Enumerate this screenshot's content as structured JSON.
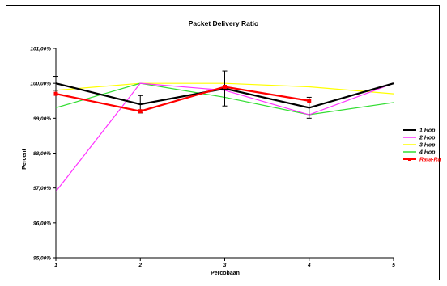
{
  "chart_data": {
    "type": "line",
    "title": "Packet Delivery Ratio",
    "xlabel": "Percobaan",
    "ylabel": "Percent",
    "x": [
      1,
      2,
      3,
      4,
      5
    ],
    "x_tick_labels": [
      "1",
      "2",
      "3",
      "4",
      "5"
    ],
    "ylim": [
      95.0,
      101.0
    ],
    "y_tick_labels": [
      "95,00%",
      "96,00%",
      "97,00%",
      "98,00%",
      "99,00%",
      "100,00%",
      "101,00%"
    ],
    "grid": false,
    "legend_position": "right",
    "series": [
      {
        "name": "1 Hop",
        "color": "#000000",
        "values": [
          100.0,
          99.4,
          99.85,
          99.3,
          100.0
        ],
        "error": [
          0.2,
          0.25,
          0.5,
          0.3,
          null
        ]
      },
      {
        "name": "2 Hop",
        "color": "#ff33ff",
        "values": [
          96.9,
          100.0,
          99.8,
          99.1,
          100.0
        ]
      },
      {
        "name": "3 Hop",
        "color": "#ffff00",
        "values": [
          99.8,
          100.0,
          100.0,
          99.9,
          99.7
        ]
      },
      {
        "name": "4 Hop",
        "color": "#33dd33",
        "values": [
          99.3,
          100.0,
          99.6,
          99.1,
          99.45
        ]
      },
      {
        "name": "Rata-Rata",
        "color": "#ff0000",
        "values": [
          99.7,
          99.2,
          99.9,
          99.5,
          null
        ]
      }
    ]
  }
}
